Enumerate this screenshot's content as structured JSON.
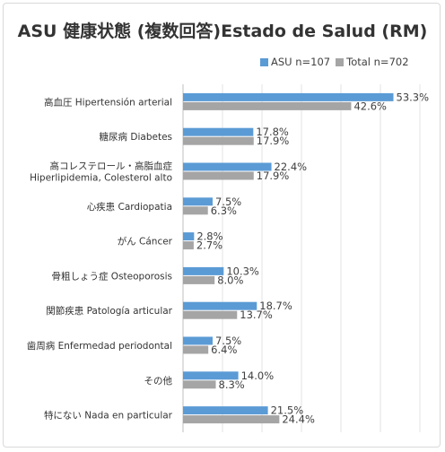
{
  "chart_data": {
    "type": "bar",
    "orientation": "horizontal",
    "title": "ASU 健康状態 (複数回答)Estado de Salud (RM)",
    "legend_position": "top-right",
    "xlim": [
      0,
      60
    ],
    "grid": true,
    "categories": [
      [
        "高血圧 Hipertensión arterial"
      ],
      [
        "糖尿病 Diabetes"
      ],
      [
        "高コレステロール・高脂血症",
        "Hiperlipidemia, Colesterol alto"
      ],
      [
        "心疾患 Cardiopatia"
      ],
      [
        "がん Cáncer"
      ],
      [
        "骨粗しょう症 Osteoporosis"
      ],
      [
        "関節疾患 Patología articular"
      ],
      [
        "歯周病 Enfermedad periodontal"
      ],
      [
        "その他"
      ],
      [
        "特にない Nada en particular"
      ]
    ],
    "series": [
      {
        "name": "ASU n=107",
        "color": "#5b9bd5",
        "values": [
          53.3,
          17.8,
          22.4,
          7.5,
          2.8,
          10.3,
          18.7,
          7.5,
          14.0,
          21.5
        ],
        "labels": [
          "53.3%",
          "17.8%",
          "22.4%",
          "7.5%",
          "2.8%",
          "10.3%",
          "18.7%",
          "7.5%",
          "14.0%",
          "21.5%"
        ]
      },
      {
        "name": "Total  n=702",
        "color": "#a5a5a5",
        "values": [
          42.6,
          17.9,
          17.9,
          6.3,
          2.7,
          8.0,
          13.7,
          6.4,
          8.3,
          24.4
        ],
        "labels": [
          "42.6%",
          "17.9%",
          "17.9%",
          "6.3%",
          "2.7%",
          "8.0%",
          "13.7%",
          "6.4%",
          "8.3%",
          "24.4%"
        ]
      }
    ]
  }
}
